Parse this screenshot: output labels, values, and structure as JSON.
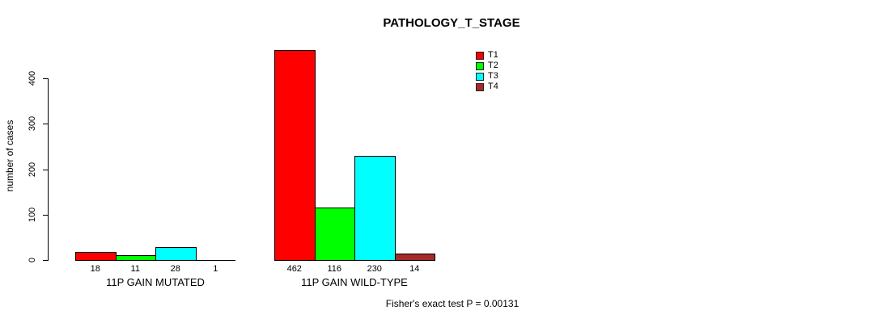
{
  "chart_data": {
    "type": "bar",
    "title": "PATHOLOGY_T_STAGE",
    "ylabel": "number of cases",
    "ylim": [
      0,
      462
    ],
    "yticks": [
      0,
      100,
      200,
      300,
      400
    ],
    "grid": false,
    "legend_position": "top-right",
    "series": [
      {
        "name": "T1",
        "color": "#ff0000"
      },
      {
        "name": "T2",
        "color": "#00ff00"
      },
      {
        "name": "T3",
        "color": "#00ffff"
      },
      {
        "name": "T4",
        "color": "#a52a2a"
      }
    ],
    "groups": [
      {
        "label": "11P GAIN MUTATED",
        "values": [
          18,
          11,
          28,
          1
        ]
      },
      {
        "label": "11P GAIN WILD-TYPE",
        "values": [
          462,
          116,
          230,
          14
        ]
      }
    ],
    "annotation": "Fisher's exact test P = 0.00131"
  }
}
